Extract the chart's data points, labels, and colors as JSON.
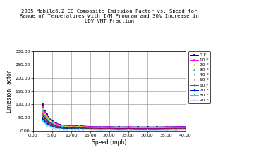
{
  "title": "2035 Mobile6.2 CO Composite Emission Factor vs. Speed for\nRange of Temperatures with I/M Program and 30% Increase in\nLDV VMT Fraction",
  "xlabel": "Speed (mph)",
  "ylabel": "Emission Factor",
  "xlim": [
    0.0,
    40.0
  ],
  "ylim": [
    0.0,
    300.0
  ],
  "xticks": [
    0.0,
    5.0,
    10.0,
    15.0,
    20.0,
    25.0,
    30.0,
    35.0,
    40.0
  ],
  "yticks": [
    0.0,
    50.0,
    100.0,
    150.0,
    200.0,
    250.0,
    300.0
  ],
  "temperatures": [
    0,
    10,
    20,
    30,
    40,
    50,
    60,
    70,
    80,
    90
  ],
  "background_color": "#ffffff",
  "speeds": [
    2.5,
    3.0,
    3.5,
    4.0,
    5.0,
    6.0,
    7.0,
    8.0,
    9.0,
    10.0,
    11.0,
    12.0,
    13.0,
    15.0,
    17.5,
    20.0,
    22.5,
    25.0,
    27.5,
    30.0,
    32.5,
    35.0,
    37.5,
    40.0
  ],
  "emission_data": {
    "0": [
      100.0,
      78.0,
      63.0,
      53.0,
      38.0,
      29.0,
      24.0,
      21.0,
      19.5,
      19.0,
      18.5,
      20.0,
      18.5,
      16.5,
      15.5,
      16.0,
      15.0,
      15.5,
      15.0,
      15.0,
      15.0,
      15.5,
      16.0,
      16.5
    ],
    "10": [
      93.0,
      72.0,
      58.0,
      49.0,
      35.0,
      27.0,
      22.0,
      19.5,
      18.0,
      17.5,
      17.0,
      18.5,
      17.0,
      15.5,
      14.5,
      15.0,
      14.0,
      14.5,
      14.0,
      14.0,
      14.0,
      14.5,
      15.0,
      15.5
    ],
    "20": [
      85.0,
      66.0,
      53.0,
      44.0,
      31.0,
      24.0,
      20.0,
      17.5,
      16.0,
      15.5,
      15.0,
      17.0,
      15.5,
      14.0,
      13.0,
      13.5,
      12.5,
      13.0,
      12.5,
      12.5,
      12.5,
      13.0,
      13.5,
      14.0
    ],
    "30": [
      76.0,
      59.0,
      47.0,
      39.0,
      28.0,
      21.0,
      17.5,
      15.5,
      14.0,
      13.5,
      13.0,
      15.0,
      13.5,
      12.0,
      11.0,
      11.5,
      10.5,
      11.0,
      10.5,
      10.5,
      10.5,
      11.0,
      11.5,
      12.0
    ],
    "40": [
      68.0,
      53.0,
      42.0,
      35.0,
      25.0,
      19.0,
      15.5,
      13.5,
      12.0,
      11.5,
      11.0,
      13.0,
      11.5,
      10.0,
      9.0,
      9.5,
      8.5,
      9.0,
      8.5,
      8.5,
      8.5,
      9.0,
      9.5,
      10.0
    ],
    "50": [
      60.0,
      47.0,
      37.0,
      31.0,
      22.0,
      16.5,
      13.5,
      11.5,
      10.0,
      9.5,
      9.0,
      11.0,
      9.5,
      8.0,
      7.0,
      7.5,
      6.5,
      7.0,
      6.5,
      6.5,
      6.5,
      7.0,
      7.5,
      8.0
    ],
    "60": [
      53.0,
      41.0,
      33.0,
      27.0,
      19.0,
      14.0,
      11.5,
      9.5,
      8.5,
      8.0,
      7.5,
      9.5,
      8.0,
      6.5,
      5.5,
      6.0,
      5.0,
      5.5,
      5.0,
      5.0,
      5.0,
      5.5,
      6.0,
      6.5
    ],
    "70": [
      46.0,
      36.0,
      28.5,
      24.0,
      16.5,
      12.0,
      9.5,
      8.0,
      7.0,
      6.5,
      6.0,
      8.0,
      6.5,
      5.0,
      4.0,
      4.5,
      3.5,
      4.0,
      3.5,
      3.5,
      3.5,
      4.0,
      4.5,
      5.0
    ],
    "80": [
      40.0,
      31.0,
      24.5,
      20.5,
      14.0,
      10.0,
      8.0,
      6.5,
      5.5,
      5.0,
      4.5,
      6.5,
      5.0,
      3.5,
      2.5,
      3.0,
      2.0,
      2.5,
      2.0,
      2.0,
      2.0,
      2.5,
      3.0,
      3.5
    ],
    "90": [
      35.0,
      27.0,
      21.0,
      17.5,
      12.0,
      8.5,
      6.5,
      5.5,
      4.5,
      4.0,
      3.5,
      5.5,
      4.0,
      2.5,
      1.5,
      2.0,
      1.0,
      1.5,
      1.0,
      1.0,
      1.0,
      1.5,
      2.0,
      2.5
    ]
  },
  "colors": [
    "#00008B",
    "#FF00FF",
    "#DDDD00",
    "#00CCCC",
    "#880088",
    "#8B0000",
    "#007777",
    "#0000CC",
    "#00DDDD",
    "#C8D8FF"
  ],
  "legend_labels": [
    "0 F",
    "10 F",
    "20 F",
    "30 F",
    "40 F",
    "50 F",
    "60 F",
    "70 F",
    "80 F",
    "90 F"
  ],
  "markers": [
    "s",
    "s",
    "*",
    "^",
    "+",
    "+",
    "+",
    "^",
    "^",
    "^"
  ]
}
